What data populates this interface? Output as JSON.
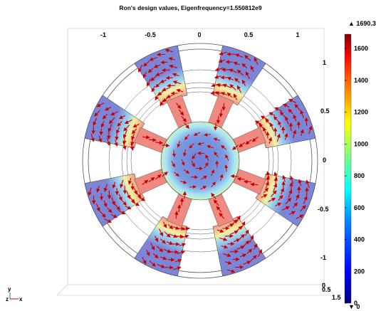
{
  "title": "Ron's design values, Eigenfrequency=1.550812e9",
  "axes": {
    "top_ticks": [
      "-1",
      "-0.5",
      "0",
      "0.5",
      "1"
    ],
    "right_ticks": [
      "1",
      "0.5",
      "0",
      "-0.5",
      "-1"
    ],
    "bottom_right_ticks": [
      "0",
      "0.5",
      "1.5"
    ],
    "orientation": {
      "y": "y",
      "z": "z",
      "x": "x"
    }
  },
  "colorbar": {
    "max_label": "▲ 1690.3",
    "min_label": "▼ 0",
    "ticks": [
      "1600",
      "1400",
      "1200",
      "1000",
      "800",
      "600",
      "400",
      "200",
      "0"
    ],
    "min": 0,
    "max": 1690.3,
    "colors": [
      "#00007f",
      "#0000ff",
      "#0080ff",
      "#00ffff",
      "#80ff80",
      "#ffff00",
      "#ff8000",
      "#ff0000",
      "#7f0000"
    ]
  },
  "colors": {
    "arrow": "#cc0000",
    "low_field": "#7b86d6",
    "mid_field": "#9fd8f0",
    "high_field": "#f0a08a",
    "axes_lines": "#999999"
  }
}
